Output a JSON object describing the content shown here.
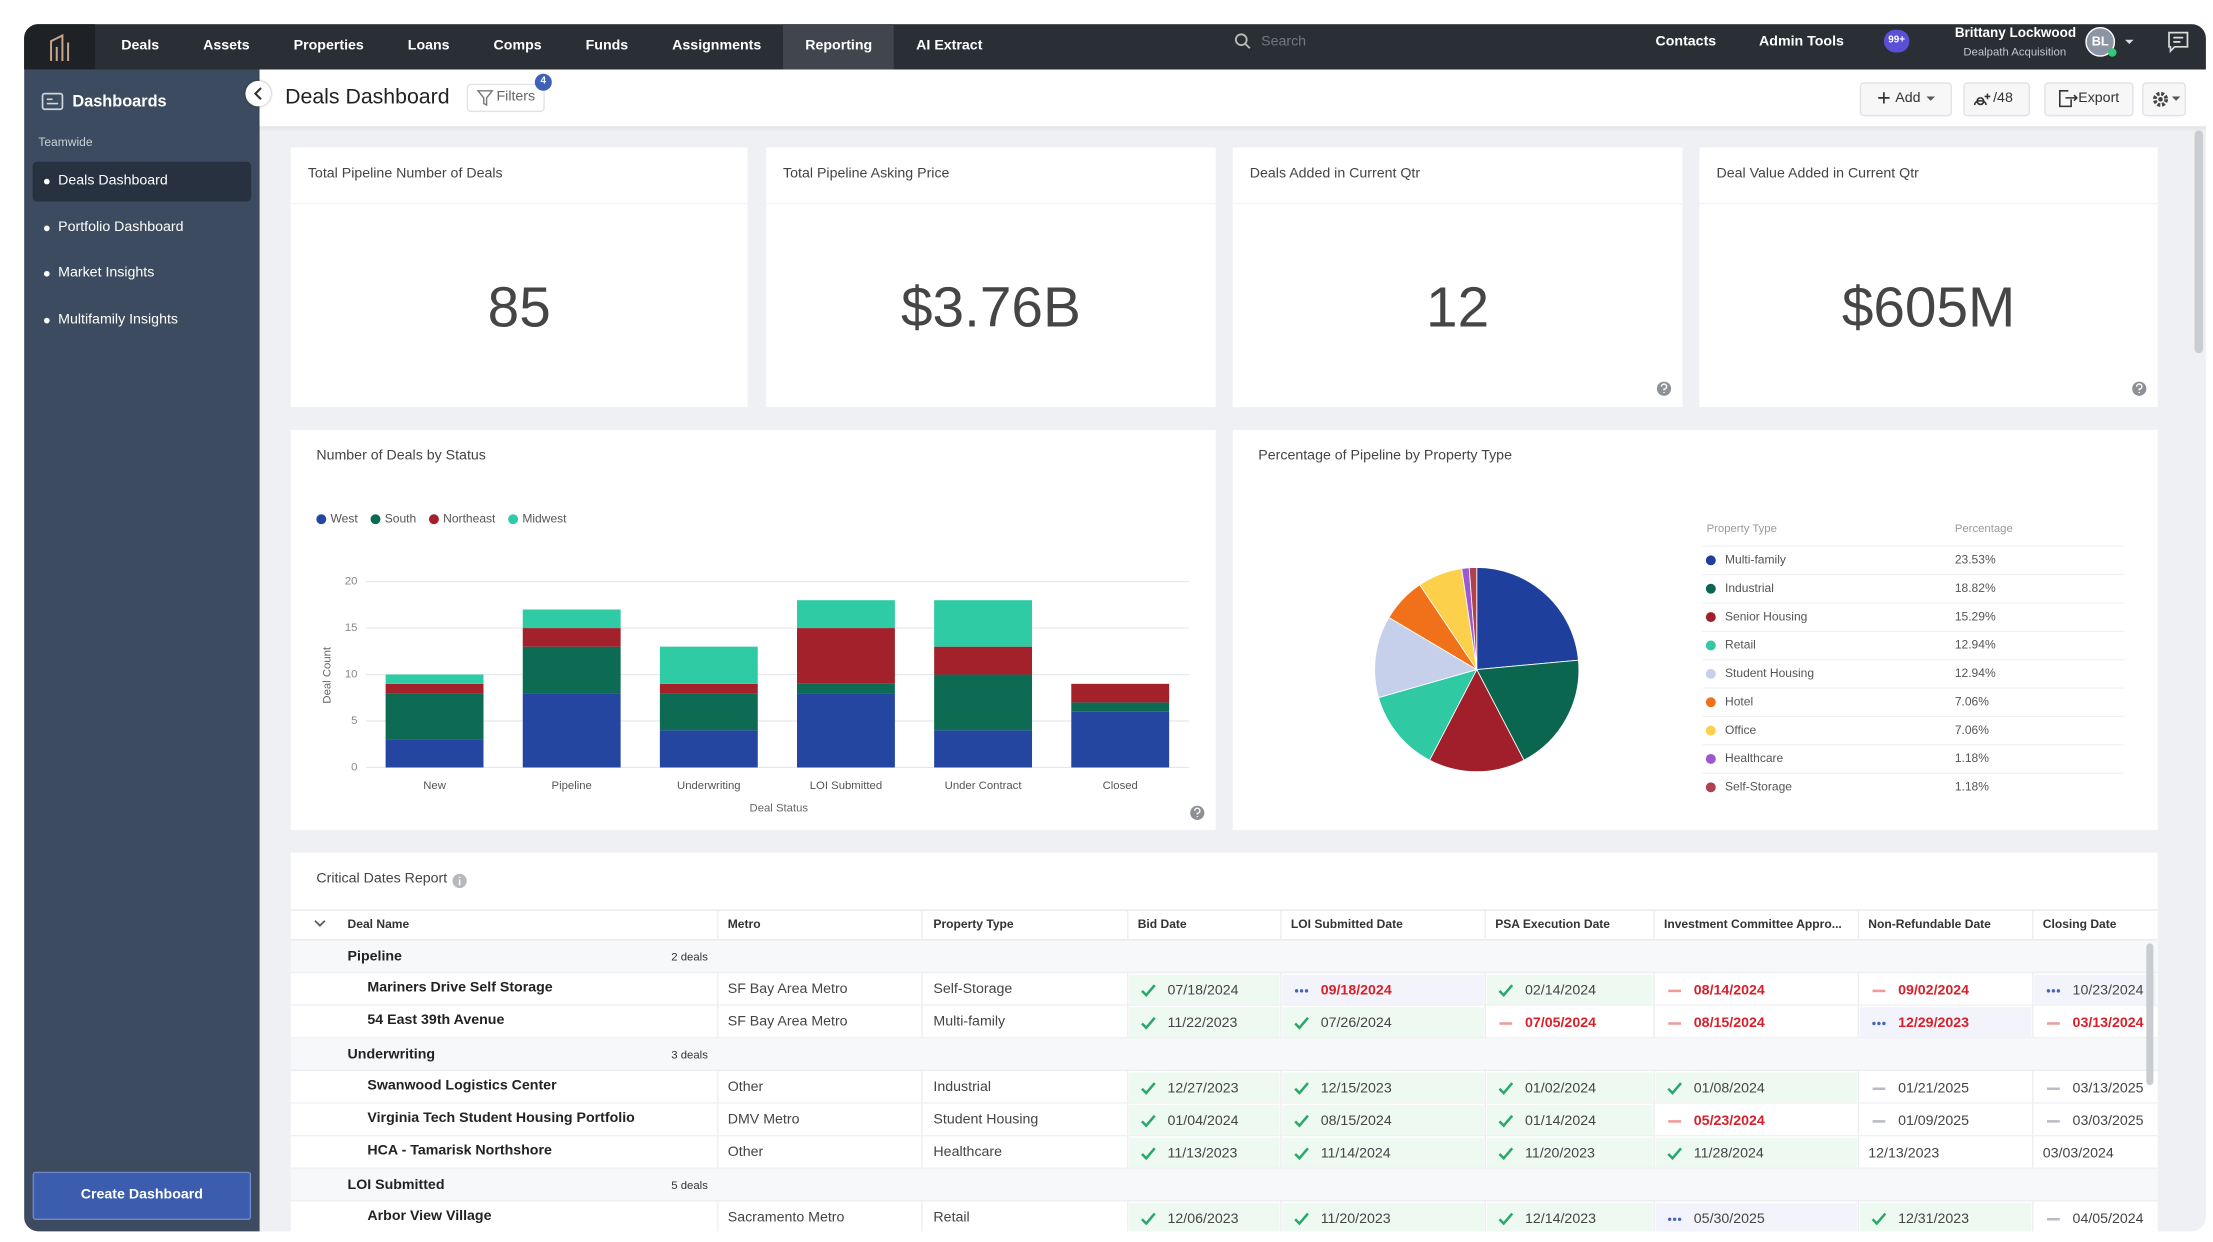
{
  "nav": {
    "items": [
      "Deals",
      "Assets",
      "Properties",
      "Loans",
      "Comps",
      "Funds",
      "Assignments",
      "Reporting",
      "AI Extract"
    ],
    "active_index": 7,
    "search_placeholder": "Search",
    "contacts": "Contacts",
    "admin": "Admin Tools",
    "notifications": "99+",
    "user_name": "Brittany Lockwood",
    "user_org": "Dealpath Acquisition",
    "avatar": "BL"
  },
  "sidebar": {
    "title": "Dashboards",
    "section": "Teamwide",
    "items": [
      "Deals Dashboard",
      "Portfolio Dashboard",
      "Market Insights",
      "Multifamily Insights"
    ],
    "active_index": 0,
    "button": "Create Dashboard"
  },
  "header": {
    "title": "Deals Dashboard",
    "filters": "Filters",
    "filter_count": 4,
    "add": "Add",
    "share": "/48",
    "export": "Export"
  },
  "kpis": [
    {
      "title": "Total Pipeline Number of Deals",
      "value": 85,
      "help": false
    },
    {
      "title": "Total Pipeline Asking Price",
      "value": "$3.76B",
      "help": false
    },
    {
      "title": "Deals Added in Current Qtr",
      "value": 12,
      "help": true
    },
    {
      "title": "Deal Value Added in Current Qtr",
      "value": "$605M",
      "help": true
    }
  ],
  "chart_data": [
    {
      "type": "bar",
      "stacked": true,
      "title": "Number of Deals by Status",
      "x_label": "Deal Status",
      "y_label": "Deal Count",
      "categories": [
        "New",
        "Pipeline",
        "Underwriting",
        "LOI Submitted",
        "Under Contract",
        "Closed"
      ],
      "series": [
        {
          "name": "West",
          "color": "#2446a0",
          "values": [
            3,
            8,
            4,
            8,
            4,
            6
          ]
        },
        {
          "name": "South",
          "color": "#0d6a53",
          "values": [
            5,
            5,
            4,
            1,
            6,
            1
          ]
        },
        {
          "name": "Northeast",
          "color": "#a3212b",
          "values": [
            1,
            2,
            1,
            6,
            3,
            2
          ]
        },
        {
          "name": "Midwest",
          "color": "#2ecba5",
          "values": [
            1,
            2,
            4,
            3,
            5,
            0
          ]
        }
      ],
      "ylim": [
        0,
        20
      ],
      "yticks": [
        0,
        5,
        10,
        15,
        20
      ],
      "grid": true
    },
    {
      "type": "pie",
      "title": "Percentage of Pipeline by Property Type",
      "legend_header": [
        "Property Type",
        "Percentage"
      ],
      "categories": [
        "Multi-family",
        "Industrial",
        "Senior Housing",
        "Retail",
        "Student Housing",
        "Hotel",
        "Office",
        "Healthcare",
        "Self-Storage"
      ],
      "values": [
        23.53,
        18.82,
        15.29,
        12.94,
        12.94,
        7.06,
        7.06,
        1.18,
        1.18
      ],
      "value_labels": [
        "23.53%",
        "18.82%",
        "15.29%",
        "12.94%",
        "12.94%",
        "7.06%",
        "7.06%",
        "1.18%",
        "1.18%"
      ],
      "colors": [
        "#1f3f9c",
        "#0b6650",
        "#a11f2a",
        "#2fc9a3",
        "#c6d0ea",
        "#f0711a",
        "#fcd04a",
        "#9b59d0",
        "#b0414f"
      ]
    }
  ],
  "table": {
    "title": "Critical Dates Report",
    "columns": [
      "Deal Name",
      "Metro",
      "Property Type",
      "Bid Date",
      "LOI Submitted Date",
      "PSA Execution Date",
      "Investment Committee Appro...",
      "Non-Refundable Date",
      "Closing Date"
    ],
    "groups": [
      {
        "name": "Pipeline",
        "count": "2 deals",
        "rows": [
          {
            "name": "Mariners Drive Self Storage",
            "metro": "SF Bay Area Metro",
            "property_type": "Self-Storage",
            "dates": [
              {
                "date": "07/18/2024",
                "status": "check",
                "overdue": false
              },
              {
                "date": "09/18/2024",
                "status": "dots",
                "overdue": true
              },
              {
                "date": "02/14/2024",
                "status": "check",
                "overdue": false
              },
              {
                "date": "08/14/2024",
                "status": "dash",
                "overdue": true
              },
              {
                "date": "09/02/2024",
                "status": "dash",
                "overdue": true
              },
              {
                "date": "10/23/2024",
                "status": "dots",
                "overdue": false
              }
            ]
          },
          {
            "name": "54 East 39th Avenue",
            "metro": "SF Bay Area Metro",
            "property_type": "Multi-family",
            "dates": [
              {
                "date": "11/22/2023",
                "status": "check",
                "overdue": false
              },
              {
                "date": "07/26/2024",
                "status": "check",
                "overdue": false
              },
              {
                "date": "07/05/2024",
                "status": "dash",
                "overdue": true
              },
              {
                "date": "08/15/2024",
                "status": "dash",
                "overdue": true
              },
              {
                "date": "12/29/2023",
                "status": "dots",
                "overdue": true
              },
              {
                "date": "03/13/2024",
                "status": "dash",
                "overdue": true
              }
            ]
          }
        ]
      },
      {
        "name": "Underwriting",
        "count": "3 deals",
        "rows": [
          {
            "name": "Swanwood Logistics Center",
            "metro": "Other",
            "property_type": "Industrial",
            "dates": [
              {
                "date": "12/27/2023",
                "status": "check",
                "overdue": false
              },
              {
                "date": "12/15/2023",
                "status": "check",
                "overdue": false
              },
              {
                "date": "01/02/2024",
                "status": "check",
                "overdue": false
              },
              {
                "date": "01/08/2024",
                "status": "check",
                "overdue": false
              },
              {
                "date": "01/21/2025",
                "status": "dash",
                "overdue": false
              },
              {
                "date": "03/13/2025",
                "status": "dash",
                "overdue": false
              }
            ]
          },
          {
            "name": "Virginia Tech Student Housing Portfolio",
            "metro": "DMV Metro",
            "property_type": "Student Housing",
            "dates": [
              {
                "date": "01/04/2024",
                "status": "check",
                "overdue": false
              },
              {
                "date": "08/15/2024",
                "status": "check",
                "overdue": false
              },
              {
                "date": "01/14/2024",
                "status": "check",
                "overdue": false
              },
              {
                "date": "05/23/2024",
                "status": "dash",
                "overdue": true
              },
              {
                "date": "01/09/2025",
                "status": "dash",
                "overdue": false
              },
              {
                "date": "03/03/2025",
                "status": "dash",
                "overdue": false
              }
            ]
          },
          {
            "name": "HCA - Tamarisk Northshore",
            "metro": "Other",
            "property_type": "Healthcare",
            "dates": [
              {
                "date": "11/13/2023",
                "status": "check",
                "overdue": false
              },
              {
                "date": "11/14/2024",
                "status": "check",
                "overdue": false
              },
              {
                "date": "11/20/2023",
                "status": "check",
                "overdue": false
              },
              {
                "date": "11/28/2024",
                "status": "check",
                "overdue": false
              },
              {
                "date": "12/13/2023",
                "status": null,
                "overdue": false
              },
              {
                "date": "03/03/2024",
                "status": null,
                "overdue": false
              }
            ]
          }
        ]
      },
      {
        "name": "LOI Submitted",
        "count": "5 deals",
        "rows": [
          {
            "name": "Arbor View Village",
            "metro": "Sacramento Metro",
            "property_type": "Retail",
            "dates": [
              {
                "date": "12/06/2023",
                "status": "check",
                "overdue": false
              },
              {
                "date": "11/20/2023",
                "status": "check",
                "overdue": false
              },
              {
                "date": "12/14/2023",
                "status": "check",
                "overdue": false
              },
              {
                "date": "05/30/2025",
                "status": "dots",
                "overdue": false
              },
              {
                "date": "12/31/2023",
                "status": "check",
                "overdue": false
              },
              {
                "date": "04/05/2024",
                "status": "dash",
                "overdue": false
              }
            ]
          }
        ]
      }
    ]
  }
}
